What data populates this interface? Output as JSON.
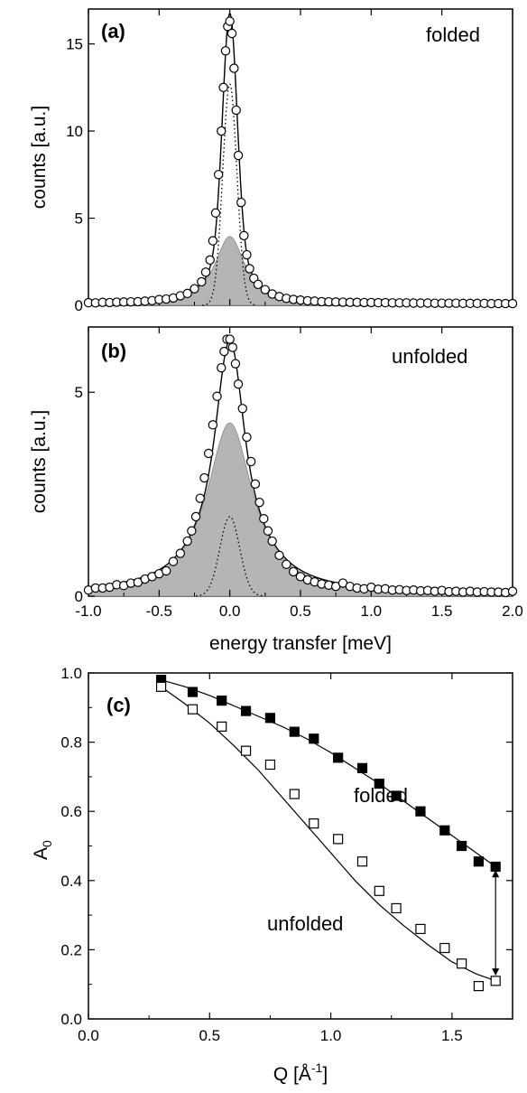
{
  "figure": {
    "shared_xlabel": "energy transfer  [meV]"
  },
  "chart_data": [
    {
      "panel": "a",
      "type": "line",
      "panel_label": "(a)",
      "annotation": "folded",
      "ylabel": "counts [a.u.]",
      "xlim": [
        -1.0,
        2.0
      ],
      "ylim": [
        0,
        17
      ],
      "y_ticks": [
        0,
        5,
        10,
        15
      ],
      "x_ticks": [
        -1.0,
        -0.5,
        0.0,
        0.5,
        1.0,
        1.5,
        2.0
      ],
      "x_tick_labels_shown": false,
      "fit": {
        "elastic_delta_amplitude": 12.7,
        "elastic_sigma_meV": 0.05,
        "quasielastic_amplitude": 3.95,
        "quasielastic_hwhm_meV": 0.13,
        "background": 0.1
      },
      "series": [
        {
          "style": "open-circles",
          "role": "measured",
          "x": [
            -1.0,
            -0.95,
            -0.9,
            -0.85,
            -0.8,
            -0.75,
            -0.7,
            -0.65,
            -0.6,
            -0.55,
            -0.5,
            -0.45,
            -0.4,
            -0.35,
            -0.3,
            -0.25,
            -0.2,
            -0.17,
            -0.14,
            -0.12,
            -0.1,
            -0.08,
            -0.06,
            -0.045,
            -0.03,
            -0.015,
            0.0,
            0.015,
            0.03,
            0.045,
            0.06,
            0.08,
            0.1,
            0.12,
            0.14,
            0.17,
            0.2,
            0.25,
            0.3,
            0.35,
            0.4,
            0.45,
            0.5,
            0.55,
            0.6,
            0.65,
            0.7,
            0.75,
            0.8,
            0.85,
            0.9,
            0.95,
            1.0,
            1.05,
            1.1,
            1.15,
            1.2,
            1.25,
            1.3,
            1.35,
            1.4,
            1.45,
            1.5,
            1.55,
            1.6,
            1.65,
            1.7,
            1.75,
            1.8,
            1.85,
            1.9,
            1.95,
            2.0
          ],
          "y": [
            0.15,
            0.14,
            0.17,
            0.16,
            0.18,
            0.19,
            0.2,
            0.21,
            0.24,
            0.27,
            0.33,
            0.36,
            0.42,
            0.55,
            0.68,
            0.95,
            1.35,
            1.9,
            2.6,
            3.7,
            5.3,
            7.5,
            10.0,
            12.5,
            14.6,
            16.0,
            16.3,
            15.6,
            13.6,
            11.2,
            8.6,
            5.9,
            4.0,
            2.9,
            2.1,
            1.55,
            1.2,
            0.9,
            0.65,
            0.5,
            0.4,
            0.34,
            0.3,
            0.26,
            0.24,
            0.21,
            0.2,
            0.19,
            0.18,
            0.17,
            0.17,
            0.16,
            0.16,
            0.15,
            0.15,
            0.14,
            0.14,
            0.14,
            0.13,
            0.13,
            0.13,
            0.12,
            0.12,
            0.12,
            0.12,
            0.11,
            0.11,
            0.11,
            0.11,
            0.1,
            0.1,
            0.1,
            0.1
          ]
        },
        {
          "style": "solid-line",
          "role": "total fit"
        },
        {
          "style": "dotted-line",
          "role": "elastic component"
        },
        {
          "style": "grey-filled-area",
          "role": "quasielastic component"
        }
      ]
    },
    {
      "panel": "b",
      "type": "line",
      "panel_label": "(b)",
      "annotation": "unfolded",
      "ylabel": "counts [a.u.]",
      "xlabel": "energy transfer  [meV]",
      "xlim": [
        -1.0,
        2.0
      ],
      "ylim": [
        0,
        6.6
      ],
      "y_ticks": [
        0,
        5
      ],
      "x_ticks": [
        -1.0,
        -0.5,
        0.0,
        0.5,
        1.0,
        1.5,
        2.0
      ],
      "x_tick_labels": [
        "-1.0",
        "-0.5",
        "0.0",
        "0.5",
        "1.0",
        "1.5",
        "2.0"
      ],
      "fit": {
        "elastic_delta_amplitude": 1.95,
        "elastic_sigma_meV": 0.07,
        "quasielastic_amplitude": 4.25,
        "quasielastic_hwhm_meV": 0.2,
        "background": 0.06
      },
      "series": [
        {
          "style": "open-circles",
          "role": "measured",
          "x": [
            -1.0,
            -0.95,
            -0.9,
            -0.85,
            -0.8,
            -0.75,
            -0.7,
            -0.65,
            -0.6,
            -0.55,
            -0.5,
            -0.45,
            -0.4,
            -0.35,
            -0.3,
            -0.27,
            -0.24,
            -0.21,
            -0.18,
            -0.15,
            -0.12,
            -0.09,
            -0.06,
            -0.04,
            -0.02,
            0.0,
            0.02,
            0.04,
            0.06,
            0.09,
            0.12,
            0.15,
            0.18,
            0.21,
            0.24,
            0.27,
            0.3,
            0.35,
            0.4,
            0.45,
            0.5,
            0.55,
            0.6,
            0.65,
            0.7,
            0.75,
            0.8,
            0.85,
            0.9,
            0.95,
            1.0,
            1.05,
            1.1,
            1.15,
            1.2,
            1.25,
            1.3,
            1.35,
            1.4,
            1.45,
            1.5,
            1.55,
            1.6,
            1.65,
            1.7,
            1.75,
            1.8,
            1.85,
            1.9,
            1.95,
            2.0
          ],
          "y": [
            0.15,
            0.2,
            0.2,
            0.22,
            0.28,
            0.26,
            0.32,
            0.34,
            0.42,
            0.48,
            0.55,
            0.62,
            0.85,
            1.05,
            1.35,
            1.6,
            1.95,
            2.4,
            2.9,
            3.5,
            4.2,
            4.9,
            5.6,
            6.0,
            6.3,
            6.3,
            6.1,
            5.7,
            5.2,
            4.6,
            3.9,
            3.3,
            2.75,
            2.3,
            1.9,
            1.6,
            1.35,
            1.0,
            0.78,
            0.6,
            0.48,
            0.4,
            0.35,
            0.3,
            0.27,
            0.24,
            0.32,
            0.24,
            0.2,
            0.18,
            0.22,
            0.17,
            0.18,
            0.15,
            0.16,
            0.14,
            0.15,
            0.13,
            0.14,
            0.12,
            0.14,
            0.11,
            0.12,
            0.1,
            0.12,
            0.1,
            0.11,
            0.1,
            0.1,
            0.09,
            0.12
          ]
        },
        {
          "style": "solid-line",
          "role": "total fit"
        },
        {
          "style": "dotted-line",
          "role": "elastic component"
        },
        {
          "style": "grey-filled-area",
          "role": "quasielastic component"
        }
      ]
    },
    {
      "panel": "c",
      "type": "scatter",
      "panel_label": "(c)",
      "xlabel": "Q [Å",
      "xlabel_superscript": "-1",
      "xlabel_suffix": "]",
      "ylabel": "A",
      "ylabel_subscript": "0",
      "xlim": [
        0.0,
        1.75
      ],
      "ylim": [
        0.0,
        1.0
      ],
      "x_ticks": [
        0.0,
        0.5,
        1.0,
        1.5
      ],
      "x_tick_labels": [
        "0.0",
        "0.5",
        "1.0",
        "1.5"
      ],
      "y_ticks": [
        0.0,
        0.2,
        0.4,
        0.6,
        0.8,
        1.0
      ],
      "y_tick_labels": [
        "0.0",
        "0.2",
        "0.4",
        "0.6",
        "0.8",
        "1.0"
      ],
      "series": [
        {
          "name": "folded",
          "marker": "filled-square",
          "x": [
            0.3,
            0.43,
            0.55,
            0.65,
            0.75,
            0.85,
            0.93,
            1.03,
            1.13,
            1.2,
            1.27,
            1.37,
            1.47,
            1.54,
            1.61,
            1.68
          ],
          "y": [
            0.98,
            0.945,
            0.92,
            0.89,
            0.87,
            0.83,
            0.81,
            0.755,
            0.725,
            0.68,
            0.645,
            0.6,
            0.545,
            0.5,
            0.455,
            0.44
          ],
          "fit_x": [
            0.3,
            0.4,
            0.5,
            0.6,
            0.7,
            0.8,
            0.9,
            1.0,
            1.1,
            1.2,
            1.3,
            1.4,
            1.5,
            1.6,
            1.68
          ],
          "fit_y": [
            0.98,
            0.96,
            0.935,
            0.905,
            0.875,
            0.845,
            0.81,
            0.77,
            0.725,
            0.68,
            0.63,
            0.58,
            0.53,
            0.48,
            0.44
          ]
        },
        {
          "name": "unfolded",
          "marker": "open-square",
          "x": [
            0.3,
            0.43,
            0.55,
            0.65,
            0.75,
            0.85,
            0.93,
            1.03,
            1.13,
            1.2,
            1.27,
            1.37,
            1.47,
            1.54,
            1.61,
            1.68
          ],
          "y": [
            0.96,
            0.895,
            0.845,
            0.775,
            0.735,
            0.65,
            0.565,
            0.52,
            0.455,
            0.37,
            0.32,
            0.26,
            0.205,
            0.16,
            0.095,
            0.11
          ],
          "fit_x": [
            0.3,
            0.4,
            0.5,
            0.6,
            0.7,
            0.8,
            0.9,
            1.0,
            1.1,
            1.2,
            1.3,
            1.4,
            1.5,
            1.6,
            1.68
          ],
          "fit_y": [
            0.96,
            0.91,
            0.855,
            0.79,
            0.72,
            0.64,
            0.56,
            0.48,
            0.4,
            0.33,
            0.27,
            0.215,
            0.165,
            0.13,
            0.11
          ]
        }
      ],
      "arrow": {
        "x": 1.68,
        "y_top": 0.43,
        "y_bottom": 0.125
      }
    }
  ]
}
